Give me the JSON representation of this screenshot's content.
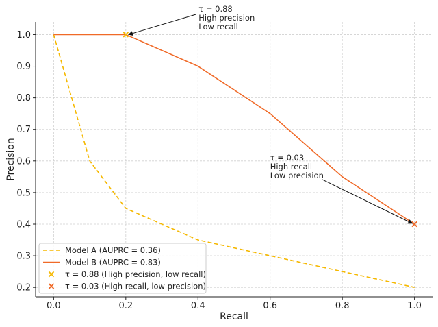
{
  "chart_data": {
    "type": "line",
    "xlabel": "Recall",
    "ylabel": "Precision",
    "xlim": [
      -0.05,
      1.05
    ],
    "ylim": [
      0.17,
      1.04
    ],
    "x_ticks": [
      0.0,
      0.2,
      0.4,
      0.6,
      0.8,
      1.0
    ],
    "x_tick_labels": [
      "0.0",
      "0.2",
      "0.4",
      "0.6",
      "0.8",
      "1.0"
    ],
    "y_ticks": [
      0.2,
      0.3,
      0.4,
      0.5,
      0.6,
      0.7,
      0.8,
      0.9,
      1.0
    ],
    "y_tick_labels": [
      "0.2",
      "0.3",
      "0.4",
      "0.5",
      "0.6",
      "0.7",
      "0.8",
      "0.9",
      "1.0"
    ],
    "grid": true,
    "legend_position": "bottom-left",
    "series": [
      {
        "name": "Model A (AUPRC = 0.36)",
        "color": "#f5b800",
        "style": "dashed",
        "x": [
          0.0,
          0.1,
          0.2,
          0.4,
          0.6,
          0.8,
          1.0
        ],
        "y": [
          1.0,
          0.6,
          0.45,
          0.35,
          0.3,
          0.25,
          0.2
        ]
      },
      {
        "name": "Model B (AUPRC = 0.83)",
        "color": "#f06a28",
        "style": "solid",
        "x": [
          0.0,
          0.2,
          0.4,
          0.6,
          0.8,
          1.0
        ],
        "y": [
          1.0,
          1.0,
          0.9,
          0.75,
          0.55,
          0.4
        ]
      }
    ],
    "markers": [
      {
        "name": "τ = 0.88 (High precision, low recall)",
        "color": "#f5b800",
        "x": 0.2,
        "y": 1.0
      },
      {
        "name": "τ = 0.03 (High recall, low precision)",
        "color": "#f06a28",
        "x": 1.0,
        "y": 0.4
      }
    ],
    "annotations": [
      {
        "lines": [
          "τ = 0.88",
          "High precision",
          "Low recall"
        ],
        "text_x": 0.4,
        "text_y": 1.07,
        "point_x": 0.2,
        "point_y": 1.0
      },
      {
        "lines": [
          "τ = 0.03",
          "High recall",
          "Low precision"
        ],
        "text_x": 0.6,
        "text_y": 0.55,
        "point_x": 1.0,
        "point_y": 0.4
      }
    ]
  }
}
